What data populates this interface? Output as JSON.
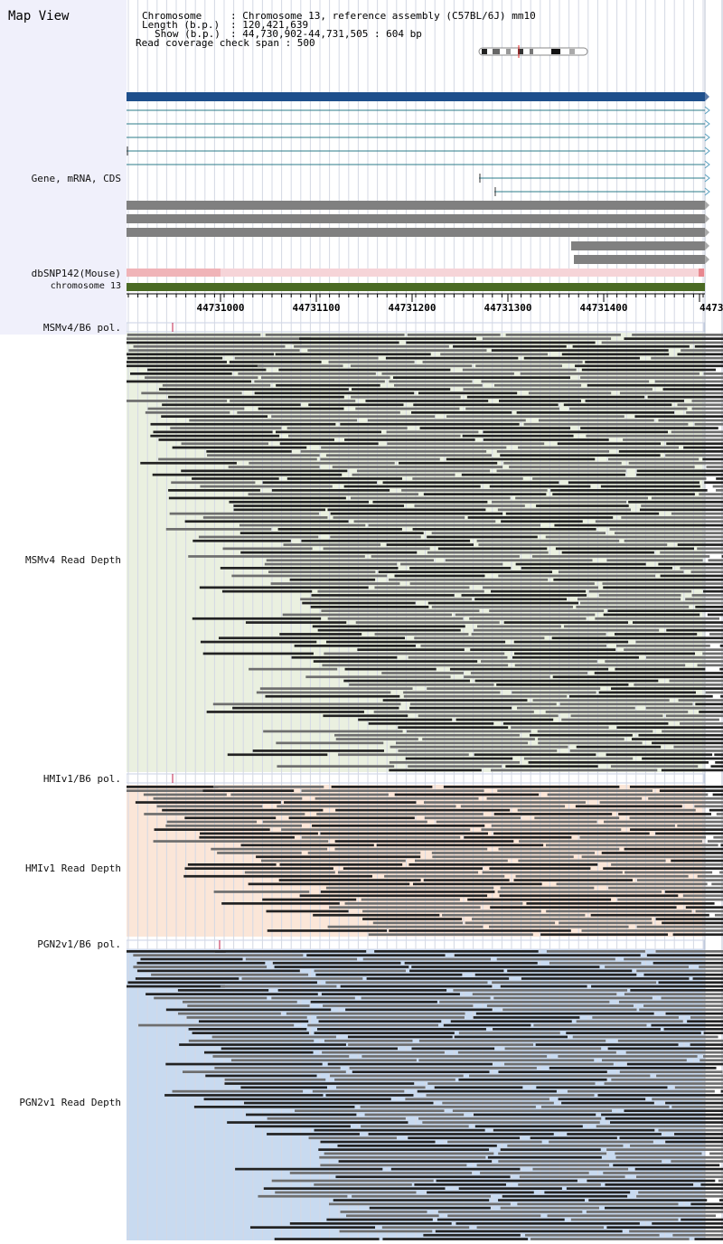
{
  "view_title": "Map View",
  "header": {
    "chromosome_key": "Chromosome",
    "chromosome_val": ": Chromosome 13, reference assembly (C57BL/6J) mm10",
    "length_key": "Length (b.p.)",
    "length_val": ": 120,421,639",
    "show_key": "Show (b.p.)",
    "show_val": ": 44,730,902-44,731,505 : 604 bp",
    "coverage": "Read coverage check span : 500"
  },
  "tracks": {
    "gene": "Gene, mRNA, CDS",
    "dbsnp": "dbSNP142(Mouse)",
    "chromosome": "chromosome 13",
    "msm_pol": "MSMv4/B6 pol.",
    "msm_depth": "MSMv4 Read Depth",
    "hmi_pol": "HMIv1/B6 pol.",
    "hmi_depth": "HMIv1 Read Depth",
    "pgn_pol": "PGN2v1/B6 pol.",
    "pgn_depth": "PGN2v1 Read Depth"
  },
  "ruler": {
    "ticks": [
      "44731000",
      "44731100",
      "44731200",
      "44731300",
      "44731400",
      "4473"
    ]
  },
  "colors": {
    "gene_main": "#1e4f8c",
    "mrna": "#2b7b8a",
    "cds": "#808080",
    "snp": "#f0b4b8",
    "chromosome": "#4a6a24",
    "msm_bg": "#eaf0e0",
    "hmi_bg": "#fbe6d8",
    "pgn_bg": "#c8daf0",
    "read_dark": "#222222",
    "read_mid": "#6e6e6e"
  }
}
